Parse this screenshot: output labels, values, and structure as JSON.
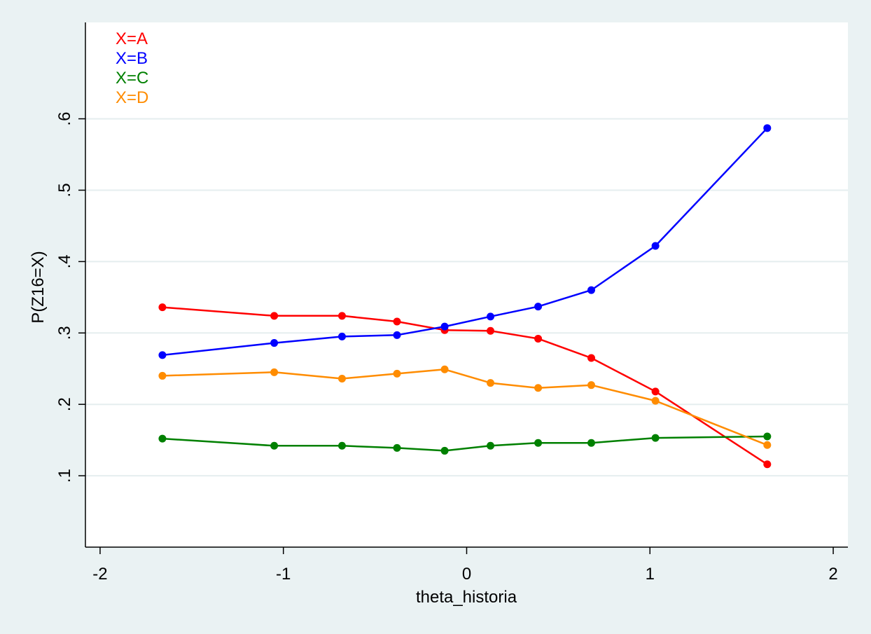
{
  "chart_data": {
    "type": "line",
    "xlabel": "theta_historia",
    "ylabel": "P(Z16=X)",
    "xlim": [
      -2,
      2
    ],
    "ylim": [
      0,
      0.735
    ],
    "xticks": [
      -2,
      -1,
      0,
      1,
      2
    ],
    "xtick_labels": [
      "-2",
      "-1",
      "0",
      "1",
      "2"
    ],
    "yticks": [
      0.1,
      0.2,
      0.3,
      0.4,
      0.5,
      0.6
    ],
    "ytick_labels": [
      ".1",
      ".2",
      ".3",
      ".4",
      ".5",
      ".6"
    ],
    "grid": true,
    "legend_position": "top-left",
    "x": [
      -1.66,
      -1.05,
      -0.68,
      -0.38,
      -0.12,
      0.13,
      0.39,
      0.68,
      1.03,
      1.64
    ],
    "series": [
      {
        "name": "X=A",
        "color": "#ff0000",
        "values": [
          0.336,
          0.324,
          0.324,
          0.316,
          0.304,
          0.303,
          0.292,
          0.265,
          0.218,
          0.116
        ]
      },
      {
        "name": "X=B",
        "color": "#0000ff",
        "values": [
          0.269,
          0.286,
          0.295,
          0.297,
          0.309,
          0.323,
          0.337,
          0.36,
          0.422,
          0.587
        ]
      },
      {
        "name": "X=C",
        "color": "#008000",
        "values": [
          0.152,
          0.142,
          0.142,
          0.139,
          0.135,
          0.142,
          0.146,
          0.146,
          0.153,
          0.155
        ]
      },
      {
        "name": "X=D",
        "color": "#ff8c00",
        "values": [
          0.24,
          0.245,
          0.236,
          0.243,
          0.249,
          0.23,
          0.223,
          0.227,
          0.205,
          0.143
        ]
      }
    ]
  }
}
